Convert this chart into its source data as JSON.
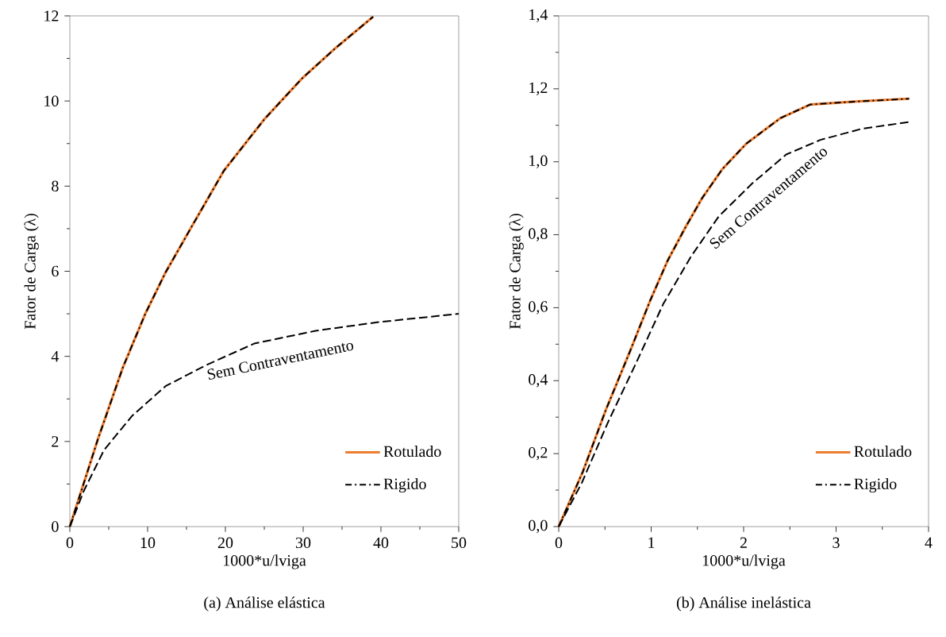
{
  "chart_data": [
    {
      "type": "line",
      "title": "(a) Análise elástica",
      "xlabel": "1000*u/lviga",
      "ylabel": "Fator de Carga (λ)",
      "xlim": [
        0,
        50
      ],
      "ylim": [
        0,
        12
      ],
      "xticks": [
        0,
        10,
        20,
        30,
        40,
        50
      ],
      "yticks": [
        0,
        2,
        4,
        6,
        8,
        10,
        12
      ],
      "legend": "bottom right",
      "series": [
        {
          "name": "Rotulado",
          "color": "#ed7d31",
          "line_style": "solid",
          "x": [
            0,
            3.6,
            6.8,
            9.7,
            12.3,
            15.8,
            19.8,
            25,
            29.8,
            34.2,
            39
          ],
          "values": [
            0,
            2.05,
            3.73,
            5.0,
            5.97,
            7.09,
            8.36,
            9.57,
            10.52,
            11.25,
            11.98
          ]
        },
        {
          "name": "Rigido",
          "color": "#000000",
          "line_style": "dashdot",
          "x": [
            0,
            3.6,
            6.8,
            9.7,
            12.3,
            15.8,
            19.8,
            25,
            29.8,
            34.2,
            39
          ],
          "values": [
            0,
            2.05,
            3.73,
            5.0,
            5.97,
            7.09,
            8.36,
            9.57,
            10.52,
            11.25,
            11.98
          ]
        },
        {
          "color": "#000000",
          "line_style": "dashed",
          "x": [
            0,
            1.8,
            4.4,
            8.0,
            12.3,
            17.6,
            23.7,
            31.6,
            39.5,
            50
          ],
          "values": [
            0,
            0.84,
            1.8,
            2.6,
            3.3,
            3.8,
            4.3,
            4.6,
            4.8,
            5.0
          ]
        }
      ],
      "annotations": [
        "Sem Contraventamento"
      ]
    },
    {
      "type": "line",
      "title": "(b) Análise inelástica",
      "xlabel": "1000*u/lviga",
      "ylabel": "Fator de Carga (λ)",
      "xlim": [
        0,
        4
      ],
      "ylim": [
        0,
        1.4
      ],
      "xticks": [
        0,
        1,
        2,
        3,
        4
      ],
      "yticks": [
        {
          "value": 0,
          "label": "0,0"
        },
        {
          "value": 0.2,
          "label": "0,2"
        },
        {
          "value": 0.4,
          "label": "0,4"
        },
        {
          "value": 0.6,
          "label": "0,6"
        },
        {
          "value": 0.8,
          "label": "0,8"
        },
        {
          "value": 1.0,
          "label": "1,0"
        },
        {
          "value": 1.2,
          "label": "1,2"
        },
        {
          "value": 1.4,
          "label": "1,4"
        }
      ],
      "legend": "bottom right",
      "series": [
        {
          "name": "Rotulado",
          "color": "#ed7d31",
          "line_style": "solid",
          "x": [
            0,
            0.26,
            0.51,
            0.77,
            0.99,
            1.18,
            1.37,
            1.55,
            1.77,
            2.03,
            2.4,
            2.72,
            3.2,
            3.79
          ],
          "values": [
            0,
            0.15,
            0.32,
            0.48,
            0.62,
            0.73,
            0.82,
            0.9,
            0.98,
            1.05,
            1.12,
            1.157,
            1.165,
            1.173
          ]
        },
        {
          "name": "Rigido",
          "color": "#000000",
          "line_style": "dashdot",
          "x": [
            0,
            0.26,
            0.51,
            0.77,
            0.99,
            1.18,
            1.37,
            1.55,
            1.77,
            2.03,
            2.4,
            2.72,
            3.2,
            3.79
          ],
          "values": [
            0,
            0.15,
            0.32,
            0.48,
            0.62,
            0.73,
            0.82,
            0.9,
            0.98,
            1.05,
            1.12,
            1.157,
            1.165,
            1.173
          ]
        },
        {
          "color": "#000000",
          "line_style": "dashed",
          "x": [
            0,
            0.25,
            0.54,
            0.84,
            1.13,
            1.43,
            1.73,
            2.09,
            2.46,
            2.83,
            3.27,
            3.81
          ],
          "values": [
            0,
            0.12,
            0.29,
            0.45,
            0.61,
            0.74,
            0.85,
            0.94,
            1.02,
            1.06,
            1.09,
            1.11
          ]
        }
      ],
      "annotations": [
        "Sem Contraventamento"
      ]
    }
  ]
}
